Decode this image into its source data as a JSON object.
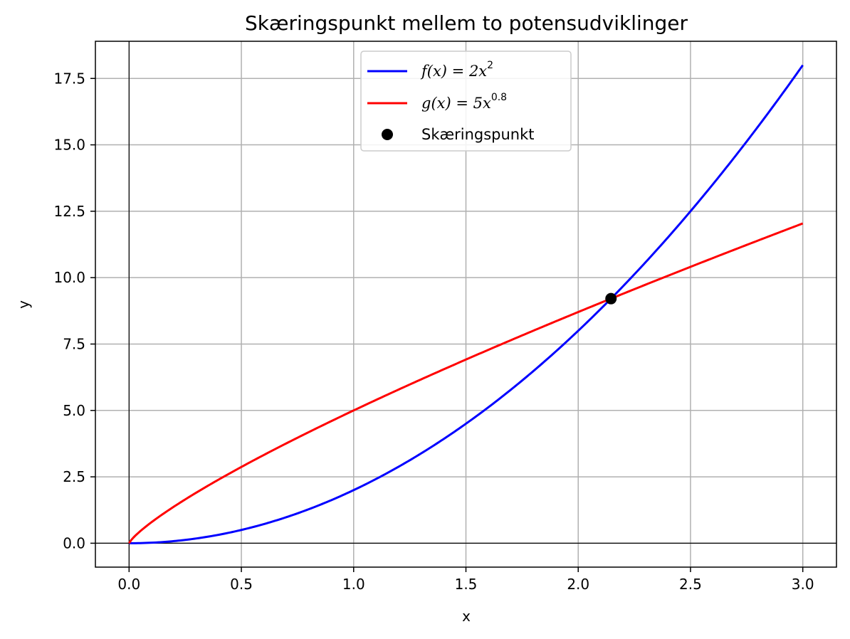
{
  "chart_data": {
    "type": "line",
    "title": "Skæringspunkt mellem to potensudviklinger",
    "xlabel": "x",
    "ylabel": "y",
    "xlim": [
      -0.15,
      3.15
    ],
    "ylim": [
      -0.9,
      18.9
    ],
    "grid": true,
    "legend_position": "top-center",
    "x_ticks": [
      0.0,
      0.5,
      1.0,
      1.5,
      2.0,
      2.5,
      3.0
    ],
    "x_tick_labels": [
      "0.0",
      "0.5",
      "1.0",
      "1.5",
      "2.0",
      "2.5",
      "3.0"
    ],
    "y_ticks": [
      0.0,
      2.5,
      5.0,
      7.5,
      10.0,
      12.5,
      15.0,
      17.5
    ],
    "y_tick_labels": [
      "0.0",
      "2.5",
      "5.0",
      "7.5",
      "10.0",
      "12.5",
      "15.0",
      "17.5"
    ],
    "series": [
      {
        "name": "f(x) = 2x^2",
        "label_parts": {
          "lhs": "f(x) = 2x",
          "sup": "2"
        },
        "color": "#0000ff",
        "coefficient": 2,
        "exponent": 2,
        "x_range": [
          0,
          3
        ]
      },
      {
        "name": "g(x) = 5x^0.8",
        "label_parts": {
          "lhs": "g(x) = 5x",
          "sup": "0.8"
        },
        "color": "#ff0000",
        "coefficient": 5,
        "exponent": 0.8,
        "x_range": [
          0,
          3
        ]
      }
    ],
    "intersection": {
      "name": "Skæringspunkt",
      "x": 2.1459,
      "y": 9.21,
      "color": "#000000"
    }
  }
}
